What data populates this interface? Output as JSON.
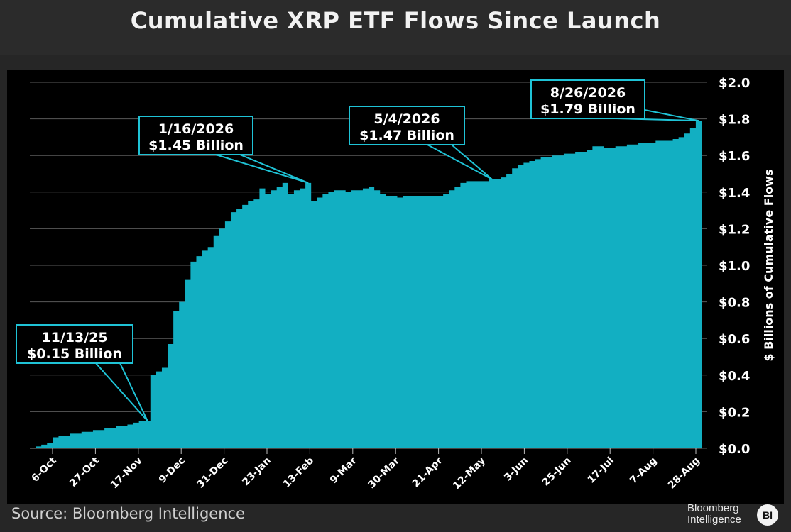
{
  "chart_data": {
    "type": "area",
    "title": "Cumulative XRP ETF Flows Since Launch",
    "ylabel": "$ Billions of Cumulative Flows",
    "ylim": [
      0,
      2.0
    ],
    "y_ticks": [
      "$0.0",
      "$0.2",
      "$0.4",
      "$0.6",
      "$0.8",
      "$1.0",
      "$1.2",
      "$1.4",
      "$1.6",
      "$1.8",
      "$2.0"
    ],
    "x_ticks": [
      "6-Oct",
      "27-Oct",
      "17-Nov",
      "9-Dec",
      "31-Dec",
      "23-Jan",
      "13-Feb",
      "9-Mar",
      "30-Mar",
      "21-Apr",
      "12-May",
      "3-Jun",
      "25-Jun",
      "17-Jul",
      "7-Aug",
      "28-Aug"
    ],
    "grid": true,
    "color": "#12afc2",
    "series": [
      {
        "values": [
          0.0,
          0.01,
          0.02,
          0.03,
          0.06,
          0.07,
          0.07,
          0.08,
          0.08,
          0.09,
          0.09,
          0.1,
          0.1,
          0.11,
          0.11,
          0.12,
          0.12,
          0.13,
          0.14,
          0.15,
          0.15,
          0.4,
          0.42,
          0.44,
          0.57,
          0.75,
          0.8,
          0.92,
          1.02,
          1.05,
          1.08,
          1.1,
          1.16,
          1.2,
          1.24,
          1.29,
          1.31,
          1.33,
          1.35,
          1.36,
          1.42,
          1.39,
          1.41,
          1.43,
          1.45,
          1.39,
          1.41,
          1.42,
          1.45,
          1.35,
          1.37,
          1.39,
          1.4,
          1.41,
          1.41,
          1.4,
          1.41,
          1.41,
          1.42,
          1.43,
          1.41,
          1.39,
          1.38,
          1.38,
          1.37,
          1.38,
          1.38,
          1.38,
          1.38,
          1.38,
          1.38,
          1.38,
          1.39,
          1.41,
          1.43,
          1.45,
          1.46,
          1.46,
          1.46,
          1.46,
          1.47,
          1.47,
          1.48,
          1.5,
          1.53,
          1.55,
          1.56,
          1.57,
          1.58,
          1.59,
          1.59,
          1.6,
          1.6,
          1.61,
          1.61,
          1.62,
          1.62,
          1.63,
          1.65,
          1.65,
          1.64,
          1.64,
          1.65,
          1.65,
          1.66,
          1.66,
          1.67,
          1.67,
          1.67,
          1.68,
          1.68,
          1.68,
          1.69,
          1.7,
          1.72,
          1.75,
          1.79
        ]
      }
    ],
    "annotations": [
      {
        "date": "11/13/25",
        "value": "$0.15 Billion",
        "at_index": 20
      },
      {
        "date": "1/16/2026",
        "value": "$1.45 Billion",
        "at_index": 48
      },
      {
        "date": "5/4/2026",
        "value": "$1.47 Billion",
        "at_index": 80
      },
      {
        "date": "8/26/2026",
        "value": "$1.79 Billion",
        "at_index": 116
      }
    ]
  },
  "source_text": "Source: Bloomberg Intelligence",
  "brand": {
    "line1": "Bloomberg",
    "line2": "Intelligence",
    "logo": "BI"
  }
}
